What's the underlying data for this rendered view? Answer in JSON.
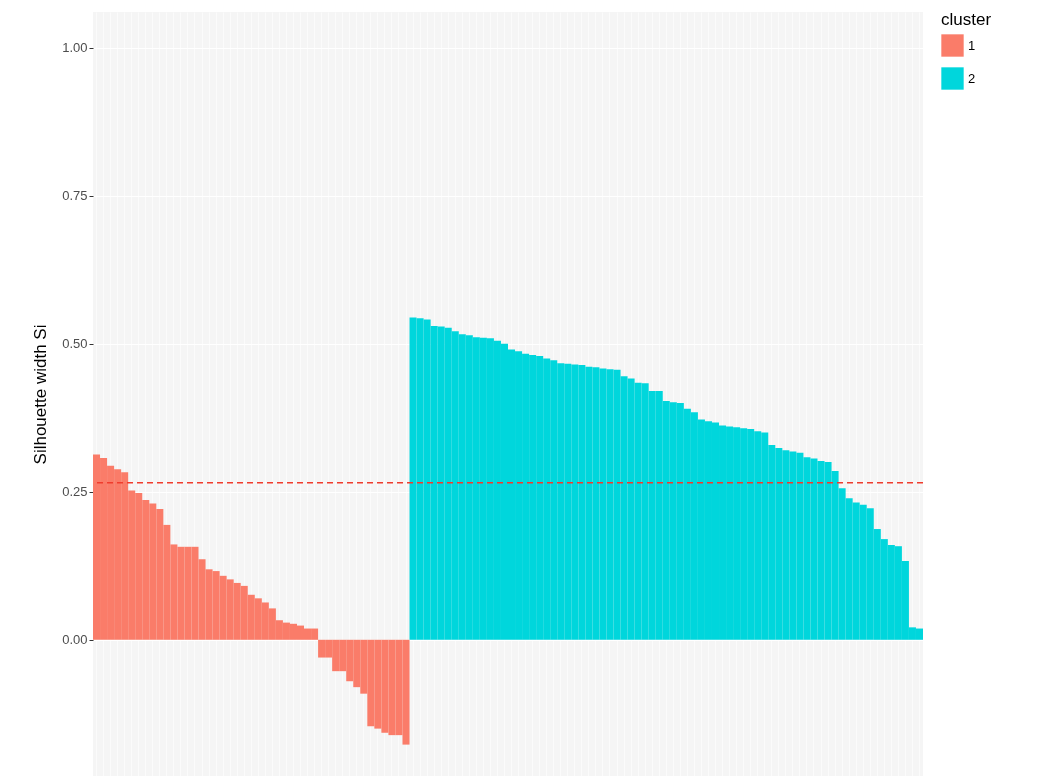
{
  "chart_data": {
    "type": "bar",
    "ylabel": "Silhouette width Si",
    "legend_title": "cluster",
    "legend": "right",
    "grid": true,
    "tick_labels": "y",
    "categories": [
      null,
      null,
      null,
      null,
      null,
      null,
      null,
      null,
      null,
      null,
      null,
      null,
      null,
      null,
      null,
      null,
      null,
      null,
      null,
      null,
      null,
      null,
      null,
      null,
      null,
      null,
      null,
      null,
      null,
      null,
      null,
      null,
      null,
      null,
      null,
      null,
      null,
      null,
      null,
      null,
      null,
      null,
      null,
      null,
      null,
      null,
      null,
      null,
      null,
      null,
      null,
      null,
      null,
      null,
      null,
      null,
      null,
      null,
      null,
      null,
      null,
      null,
      null,
      null,
      null,
      null,
      null,
      null,
      null,
      null,
      null,
      null,
      null,
      null,
      null,
      null,
      null,
      null,
      null,
      null,
      null,
      null,
      null,
      null,
      null,
      null,
      null,
      null,
      null,
      null,
      null,
      null,
      null,
      null,
      null,
      null,
      null,
      null,
      null,
      null,
      null,
      null,
      null,
      null,
      null,
      null,
      null,
      null,
      null,
      null,
      null,
      null,
      null,
      null,
      null,
      null,
      null,
      null
    ],
    "series": [
      {
        "name": "1",
        "color": "#fa7c69",
        "values": [
          0.313,
          0.307,
          0.294,
          0.288,
          0.283,
          0.252,
          0.248,
          0.236,
          0.23,
          0.221,
          0.194,
          0.161,
          0.157,
          0.157,
          0.157,
          0.136,
          0.119,
          0.116,
          0.108,
          0.102,
          0.096,
          0.091,
          0.076,
          0.07,
          0.063,
          0.053,
          0.033,
          0.029,
          0.027,
          0.024,
          0.019,
          0.019,
          -0.03,
          -0.03,
          -0.053,
          -0.053,
          -0.07,
          -0.08,
          -0.091,
          -0.146,
          -0.15,
          -0.157,
          -0.161,
          -0.161,
          -0.177,
          null,
          null,
          null,
          null,
          null,
          null,
          null,
          null,
          null,
          null,
          null,
          null,
          null,
          null,
          null,
          null,
          null,
          null,
          null,
          null,
          null,
          null,
          null,
          null,
          null,
          null,
          null,
          null,
          null,
          null,
          null,
          null,
          null,
          null,
          null,
          null,
          null,
          null,
          null,
          null,
          null,
          null,
          null,
          null,
          null,
          null,
          null,
          null,
          null,
          null,
          null,
          null,
          null,
          null,
          null,
          null,
          null,
          null,
          null,
          null,
          null,
          null,
          null,
          null,
          null,
          null,
          null,
          null,
          null,
          null,
          null,
          null,
          null
        ]
      },
      {
        "name": "2",
        "color": "#00d6dc",
        "values": [
          null,
          null,
          null,
          null,
          null,
          null,
          null,
          null,
          null,
          null,
          null,
          null,
          null,
          null,
          null,
          null,
          null,
          null,
          null,
          null,
          null,
          null,
          null,
          null,
          null,
          null,
          null,
          null,
          null,
          null,
          null,
          null,
          null,
          null,
          null,
          null,
          null,
          null,
          null,
          null,
          null,
          null,
          null,
          null,
          null,
          0.544,
          0.543,
          0.541,
          0.53,
          0.529,
          0.527,
          0.521,
          0.516,
          0.514,
          0.511,
          0.51,
          0.509,
          0.505,
          0.5,
          0.49,
          0.487,
          0.483,
          0.481,
          0.479,
          0.475,
          0.472,
          0.467,
          0.466,
          0.465,
          0.464,
          0.461,
          0.46,
          0.458,
          0.457,
          0.456,
          0.445,
          0.441,
          0.434,
          0.433,
          0.42,
          0.42,
          0.403,
          0.401,
          0.4,
          0.39,
          0.384,
          0.372,
          0.369,
          0.367,
          0.362,
          0.36,
          0.359,
          0.357,
          0.356,
          0.352,
          0.35,
          0.329,
          0.324,
          0.32,
          0.318,
          0.316,
          0.308,
          0.306,
          0.302,
          0.3,
          0.285,
          0.256,
          0.239,
          0.232,
          0.228,
          0.222,
          0.187,
          0.17,
          0.16,
          0.158,
          0.133,
          0.021,
          0.019
        ]
      }
    ],
    "ylim": [
      -0.23,
      1.06
    ],
    "yticks": [
      {
        "value": 0,
        "label": "0.00"
      },
      {
        "value": 0.25,
        "label": "0.25"
      },
      {
        "value": 0.5,
        "label": "0.50"
      },
      {
        "value": 0.75,
        "label": "0.75"
      },
      {
        "value": 1,
        "label": "1.00"
      }
    ],
    "ref_lines": [
      {
        "axis": "y",
        "value": 0.265,
        "label": null,
        "color": "#f03c2d",
        "line_style": "dashed"
      }
    ]
  }
}
